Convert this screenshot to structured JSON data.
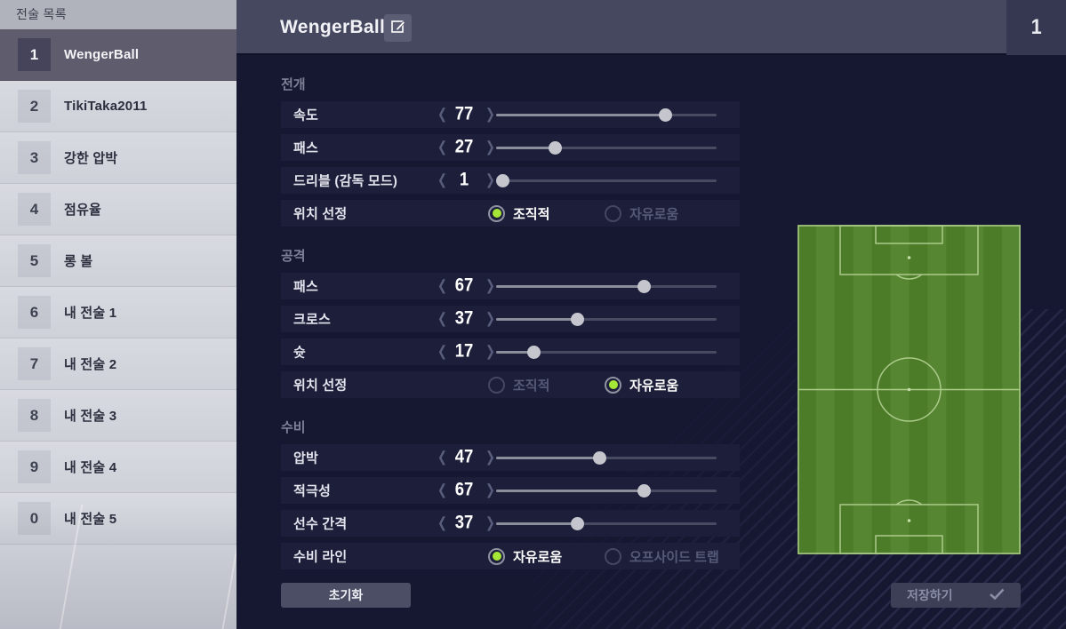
{
  "sidebar": {
    "title": "전술 목록",
    "items": [
      {
        "key": "1",
        "label": "WengerBall",
        "selected": true
      },
      {
        "key": "2",
        "label": "TikiTaka2011",
        "selected": false
      },
      {
        "key": "3",
        "label": "강한 압박",
        "selected": false
      },
      {
        "key": "4",
        "label": "점유율",
        "selected": false
      },
      {
        "key": "5",
        "label": "롱 볼",
        "selected": false
      },
      {
        "key": "6",
        "label": "내 전술 1",
        "selected": false
      },
      {
        "key": "7",
        "label": "내 전술 2",
        "selected": false
      },
      {
        "key": "8",
        "label": "내 전술 3",
        "selected": false
      },
      {
        "key": "9",
        "label": "내 전술 4",
        "selected": false
      },
      {
        "key": "0",
        "label": "내 전술 5",
        "selected": false
      }
    ]
  },
  "header": {
    "title": "WengerBall",
    "slot_number": "1"
  },
  "stepper": {
    "prev_glyph": "❮",
    "next_glyph": "❯"
  },
  "sections": [
    {
      "title": "전개",
      "rows": [
        {
          "type": "slider",
          "label": "속도",
          "value": 77
        },
        {
          "type": "slider",
          "label": "패스",
          "value": 27
        },
        {
          "type": "slider",
          "label": "드리블 (감독 모드)",
          "value": 1
        },
        {
          "type": "radio",
          "label": "위치 선정",
          "options": [
            {
              "label": "조직적",
              "selected": true
            },
            {
              "label": "자유로움",
              "selected": false
            }
          ]
        }
      ]
    },
    {
      "title": "공격",
      "rows": [
        {
          "type": "slider",
          "label": "패스",
          "value": 67
        },
        {
          "type": "slider",
          "label": "크로스",
          "value": 37
        },
        {
          "type": "slider",
          "label": "슛",
          "value": 17
        },
        {
          "type": "radio",
          "label": "위치 선정",
          "options": [
            {
              "label": "조직적",
              "selected": false
            },
            {
              "label": "자유로움",
              "selected": true
            }
          ]
        }
      ]
    },
    {
      "title": "수비",
      "rows": [
        {
          "type": "slider",
          "label": "압박",
          "value": 47
        },
        {
          "type": "slider",
          "label": "적극성",
          "value": 67
        },
        {
          "type": "slider",
          "label": "선수 간격",
          "value": 37
        },
        {
          "type": "radio",
          "label": "수비 라인",
          "options": [
            {
              "label": "자유로움",
              "selected": true
            },
            {
              "label": "오프사이드 트랩",
              "selected": false
            }
          ]
        }
      ]
    }
  ],
  "buttons": {
    "reset": "초기화",
    "save": "저장하기"
  },
  "icons": {
    "edit": "pencil-square",
    "save_check": "checkmark",
    "stepper_prev": "chevron-left",
    "stepper_next": "chevron-right"
  },
  "colors": {
    "accent_green": "#a6e636",
    "pitch_green": "#4d7c28",
    "pitch_stripe": "#568631",
    "background": "#161731",
    "topbar": "#45485f",
    "selected_item": "#5f5c6d",
    "row_bg": "#1d1f3a"
  }
}
